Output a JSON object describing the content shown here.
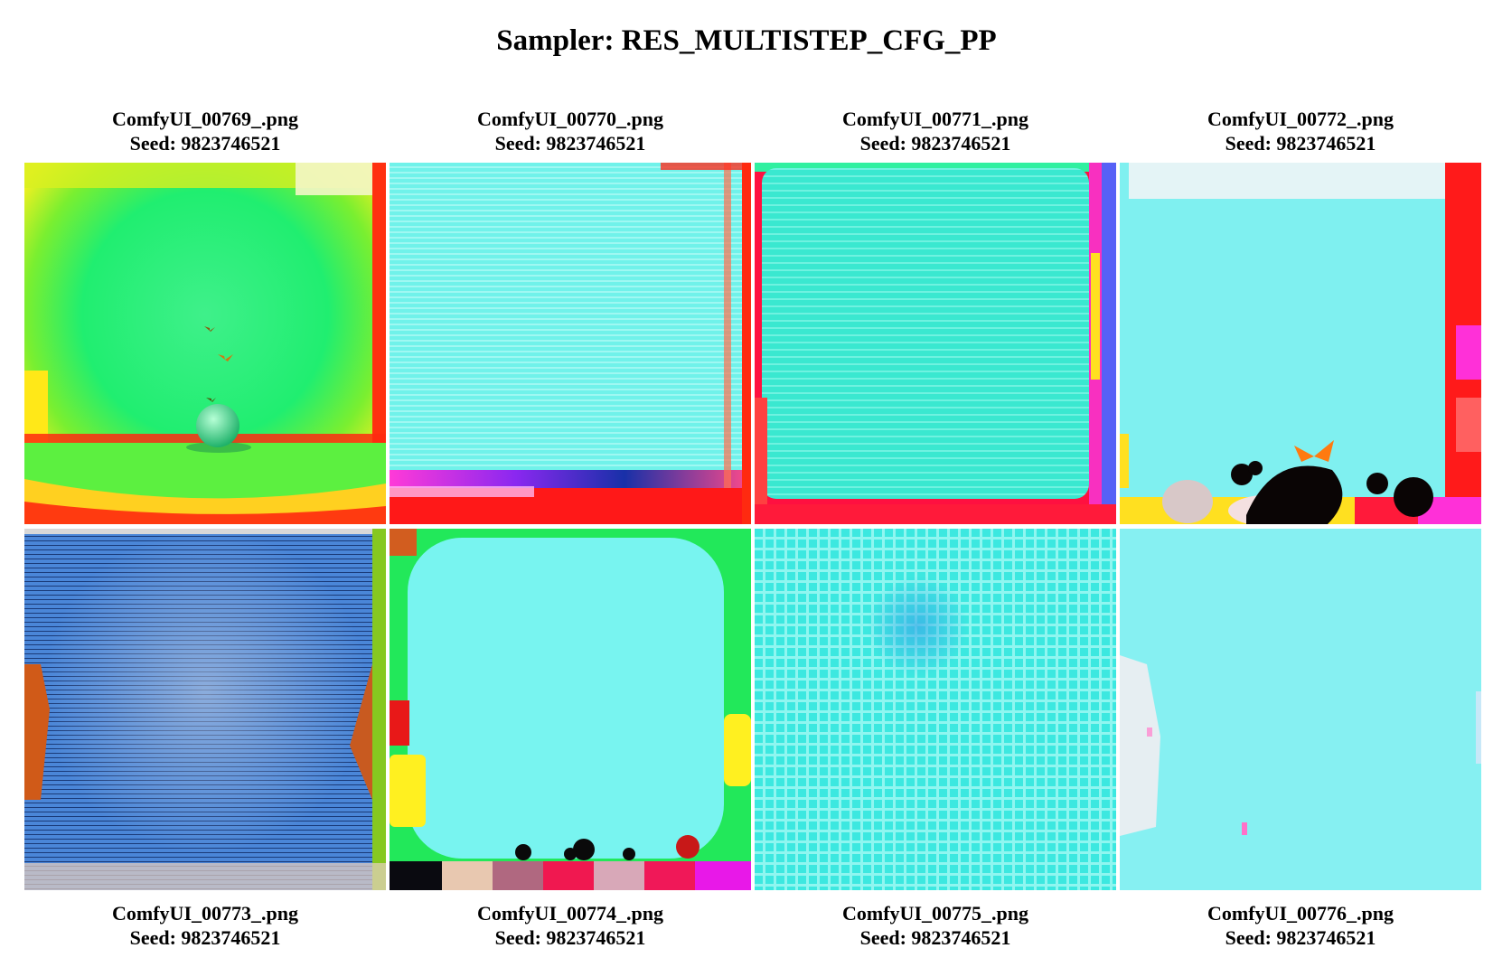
{
  "title": "Sampler: RES_MULTISTEP_CFG_PP",
  "images": [
    {
      "filename": "ComfyUI_00769_.png",
      "seed": "Seed: 9823746521"
    },
    {
      "filename": "ComfyUI_00770_.png",
      "seed": "Seed: 9823746521"
    },
    {
      "filename": "ComfyUI_00771_.png",
      "seed": "Seed: 9823746521"
    },
    {
      "filename": "ComfyUI_00772_.png",
      "seed": "Seed: 9823746521"
    },
    {
      "filename": "ComfyUI_00773_.png",
      "seed": "Seed: 9823746521"
    },
    {
      "filename": "ComfyUI_00774_.png",
      "seed": "Seed: 9823746521"
    },
    {
      "filename": "ComfyUI_00775_.png",
      "seed": "Seed: 9823746521"
    },
    {
      "filename": "ComfyUI_00776_.png",
      "seed": "Seed: 9823746521"
    }
  ]
}
